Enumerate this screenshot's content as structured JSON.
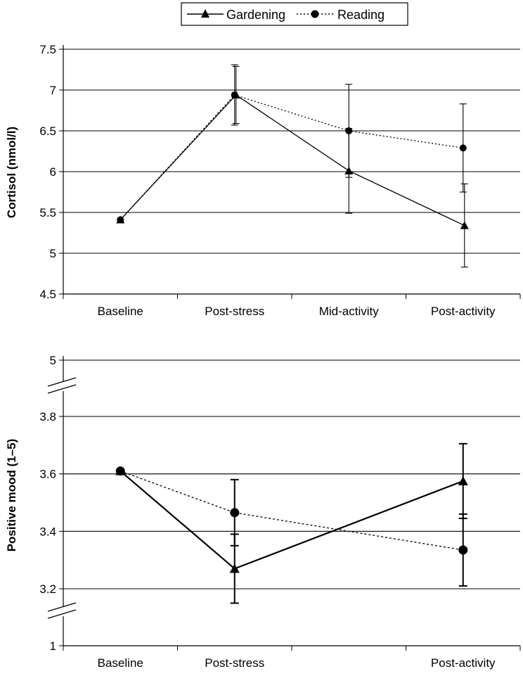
{
  "legend": [
    {
      "label": "Gardening",
      "marker": "triangle",
      "line": "solid"
    },
    {
      "label": "Reading",
      "marker": "circle",
      "line": "dotted"
    }
  ],
  "chart_data": [
    {
      "type": "line",
      "ylabel": "Cortisol (nmol/l)",
      "categories": [
        "Baseline",
        "Post-stress",
        "Mid-activity",
        "Post-activity"
      ],
      "yticks": [
        "4.5",
        "5",
        "5.5",
        "6",
        "6.5",
        "7",
        "7.5"
      ],
      "ylim": [
        4.5,
        7.5
      ],
      "grid": true,
      "legend_position": "top-center",
      "series": [
        {
          "name": "Gardening",
          "values": [
            5.41,
            6.94,
            6.01,
            5.34
          ],
          "error": [
            null,
            0.35,
            0.52,
            0.51
          ]
        },
        {
          "name": "Reading",
          "values": [
            5.41,
            6.94,
            6.5,
            6.29
          ],
          "error": [
            null,
            0.37,
            0.57,
            0.54
          ]
        }
      ]
    },
    {
      "type": "line",
      "ylabel": "Positive mood (1–5)",
      "categories": [
        "Baseline",
        "Post-stress",
        "Post-activity"
      ],
      "yticks": [
        "1",
        "3.2",
        "3.4",
        "3.6",
        "3.8",
        "5"
      ],
      "ylim": [
        1,
        5
      ],
      "axis_break": true,
      "grid": true,
      "series": [
        {
          "name": "Gardening",
          "values": [
            3.61,
            3.27,
            3.575
          ],
          "error": [
            null,
            0.12,
            0.13
          ]
        },
        {
          "name": "Reading",
          "values": [
            3.61,
            3.465,
            3.335
          ],
          "error": [
            null,
            0.115,
            0.125
          ]
        }
      ]
    }
  ]
}
